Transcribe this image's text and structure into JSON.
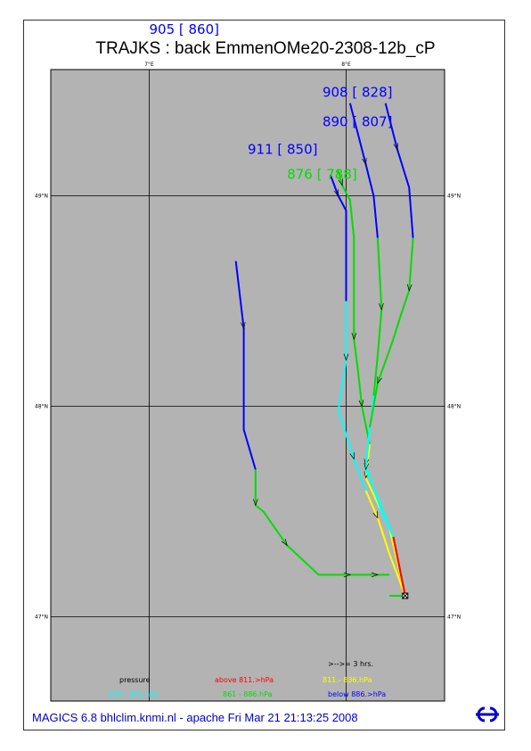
{
  "title": "TRAJKS : back EmmenOMe20-2308-12b_cP",
  "footer": "MAGICS 6.8 bhlclim.knmi.nl - apache Fri Mar 21 21:13:25 2008",
  "chart_data": {
    "type": "line",
    "title": "TRAJKS : back EmmenOMe20-2308-12b_cP",
    "x_range": [
      6.5,
      7.5
    ],
    "y_range": [
      46.6,
      49.6
    ],
    "lon_ticks": [
      {
        "value": 6.75,
        "label": "7°E"
      },
      {
        "value": 7.25,
        "label": "8°E"
      }
    ],
    "lat_ticks": [
      {
        "value": 47.0,
        "label": "47°N"
      },
      {
        "value": 48.0,
        "label": "48°N"
      },
      {
        "value": 49.0,
        "label": "49°N"
      }
    ],
    "grid": true,
    "colors": {
      "above": "#ff0000",
      "band1": "#ffff00",
      "band2": "#00ffff",
      "band3": "#00dd00",
      "below": "#0000ff",
      "map_bg": "#b3b3b3"
    },
    "start_point": [
      7.4,
      47.1
    ],
    "trajectories": [
      {
        "label": "905 [ 860]",
        "label_color": "below",
        "label_pos": [
          6.75,
          49.77
        ],
        "segments": [
          {
            "c": "below",
            "pts": [
              [
                6.97,
                48.69
              ],
              [
                6.99,
                48.37
              ],
              [
                6.99,
                47.89
              ],
              [
                7.02,
                47.7
              ]
            ]
          },
          {
            "c": "band3",
            "pts": [
              [
                7.02,
                47.7
              ],
              [
                7.02,
                47.53
              ],
              [
                7.04,
                47.5
              ],
              [
                7.1,
                47.34
              ],
              [
                7.18,
                47.2
              ],
              [
                7.26,
                47.2
              ],
              [
                7.28,
                47.2
              ],
              [
                7.33,
                47.2
              ],
              [
                7.36,
                47.2
              ]
            ]
          },
          {
            "c": "band3",
            "pts": [
              [
                7.36,
                47.1
              ],
              [
                7.4,
                47.1
              ]
            ]
          }
        ]
      },
      {
        "label": "911 [ 850]",
        "label_color": "below",
        "label_pos": [
          7.0,
          49.2
        ],
        "segments": [
          {
            "c": "below",
            "pts": [
              [
                7.21,
                49.1
              ],
              [
                7.23,
                49.0
              ],
              [
                7.25,
                48.93
              ],
              [
                7.25,
                48.5
              ]
            ]
          },
          {
            "c": "band2",
            "pts": [
              [
                7.25,
                48.5
              ],
              [
                7.25,
                48.22
              ],
              [
                7.23,
                47.98
              ],
              [
                7.27,
                47.75
              ],
              [
                7.3,
                47.6
              ]
            ]
          },
          {
            "c": "band1",
            "pts": [
              [
                7.3,
                47.6
              ],
              [
                7.33,
                47.47
              ],
              [
                7.36,
                47.3
              ],
              [
                7.4,
                47.1
              ]
            ]
          }
        ]
      },
      {
        "label": "876 [ 788]",
        "label_color": "band3",
        "label_pos": [
          7.1,
          49.08
        ],
        "segments": [
          {
            "c": "band3",
            "pts": [
              [
                7.23,
                49.12
              ],
              [
                7.24,
                49.05
              ],
              [
                7.26,
                48.98
              ],
              [
                7.27,
                48.8
              ]
            ]
          },
          {
            "c": "band3",
            "pts": [
              [
                7.27,
                48.8
              ],
              [
                7.27,
                48.32
              ],
              [
                7.28,
                48.17
              ],
              [
                7.29,
                48.0
              ],
              [
                7.31,
                47.82
              ]
            ]
          },
          {
            "c": "band1",
            "pts": [
              [
                7.31,
                47.82
              ],
              [
                7.3,
                47.66
              ],
              [
                7.36,
                47.42
              ],
              [
                7.4,
                47.1
              ]
            ]
          }
        ]
      },
      {
        "label": "890 [ 807]",
        "label_color": "below",
        "label_pos": [
          7.19,
          49.33
        ],
        "segments": [
          {
            "c": "below",
            "pts": [
              [
                7.26,
                49.44
              ],
              [
                7.3,
                49.15
              ],
              [
                7.32,
                49.0
              ],
              [
                7.33,
                48.8
              ]
            ]
          },
          {
            "c": "band3",
            "pts": [
              [
                7.33,
                48.8
              ],
              [
                7.34,
                48.46
              ],
              [
                7.33,
                48.24
              ],
              [
                7.32,
                48.05
              ]
            ]
          },
          {
            "c": "band2",
            "pts": [
              [
                7.32,
                48.05
              ],
              [
                7.3,
                47.72
              ],
              [
                7.34,
                47.5
              ],
              [
                7.37,
                47.38
              ]
            ]
          },
          {
            "c": "red",
            "pts": [
              [
                7.37,
                47.38
              ],
              [
                7.4,
                47.1
              ]
            ]
          }
        ]
      },
      {
        "label": "908 [ 828]",
        "label_color": "below",
        "label_pos": [
          7.19,
          49.47
        ],
        "segments": [
          {
            "c": "below",
            "pts": [
              [
                7.35,
                49.44
              ],
              [
                7.38,
                49.22
              ],
              [
                7.41,
                49.04
              ],
              [
                7.42,
                48.8
              ]
            ]
          },
          {
            "c": "band3",
            "pts": [
              [
                7.42,
                48.8
              ],
              [
                7.41,
                48.55
              ],
              [
                7.39,
                48.44
              ],
              [
                7.37,
                48.32
              ]
            ]
          },
          {
            "c": "band3",
            "pts": [
              [
                7.37,
                48.32
              ],
              [
                7.33,
                48.11
              ],
              [
                7.31,
                47.9
              ]
            ]
          },
          {
            "c": "band2",
            "pts": [
              [
                7.31,
                47.9
              ],
              [
                7.3,
                47.7
              ],
              [
                7.33,
                47.57
              ],
              [
                7.37,
                47.38
              ]
            ]
          },
          {
            "c": "red",
            "pts": [
              [
                7.37,
                47.38
              ],
              [
                7.4,
                47.1
              ]
            ]
          }
        ]
      }
    ],
    "legend": {
      "interval": ">-->= 3 hrs.",
      "pressure_label": "pressure",
      "entries": [
        {
          "label": "above  811.>hPa",
          "color": "above"
        },
        {
          "label": "811.-   836.hPa",
          "color": "band1"
        },
        {
          "label": "836.-   861.hPa",
          "color": "band2"
        },
        {
          "label": "861 -   886.hPa",
          "color": "band3"
        },
        {
          "label": "below  886.>hPa",
          "color": "below"
        }
      ]
    }
  }
}
